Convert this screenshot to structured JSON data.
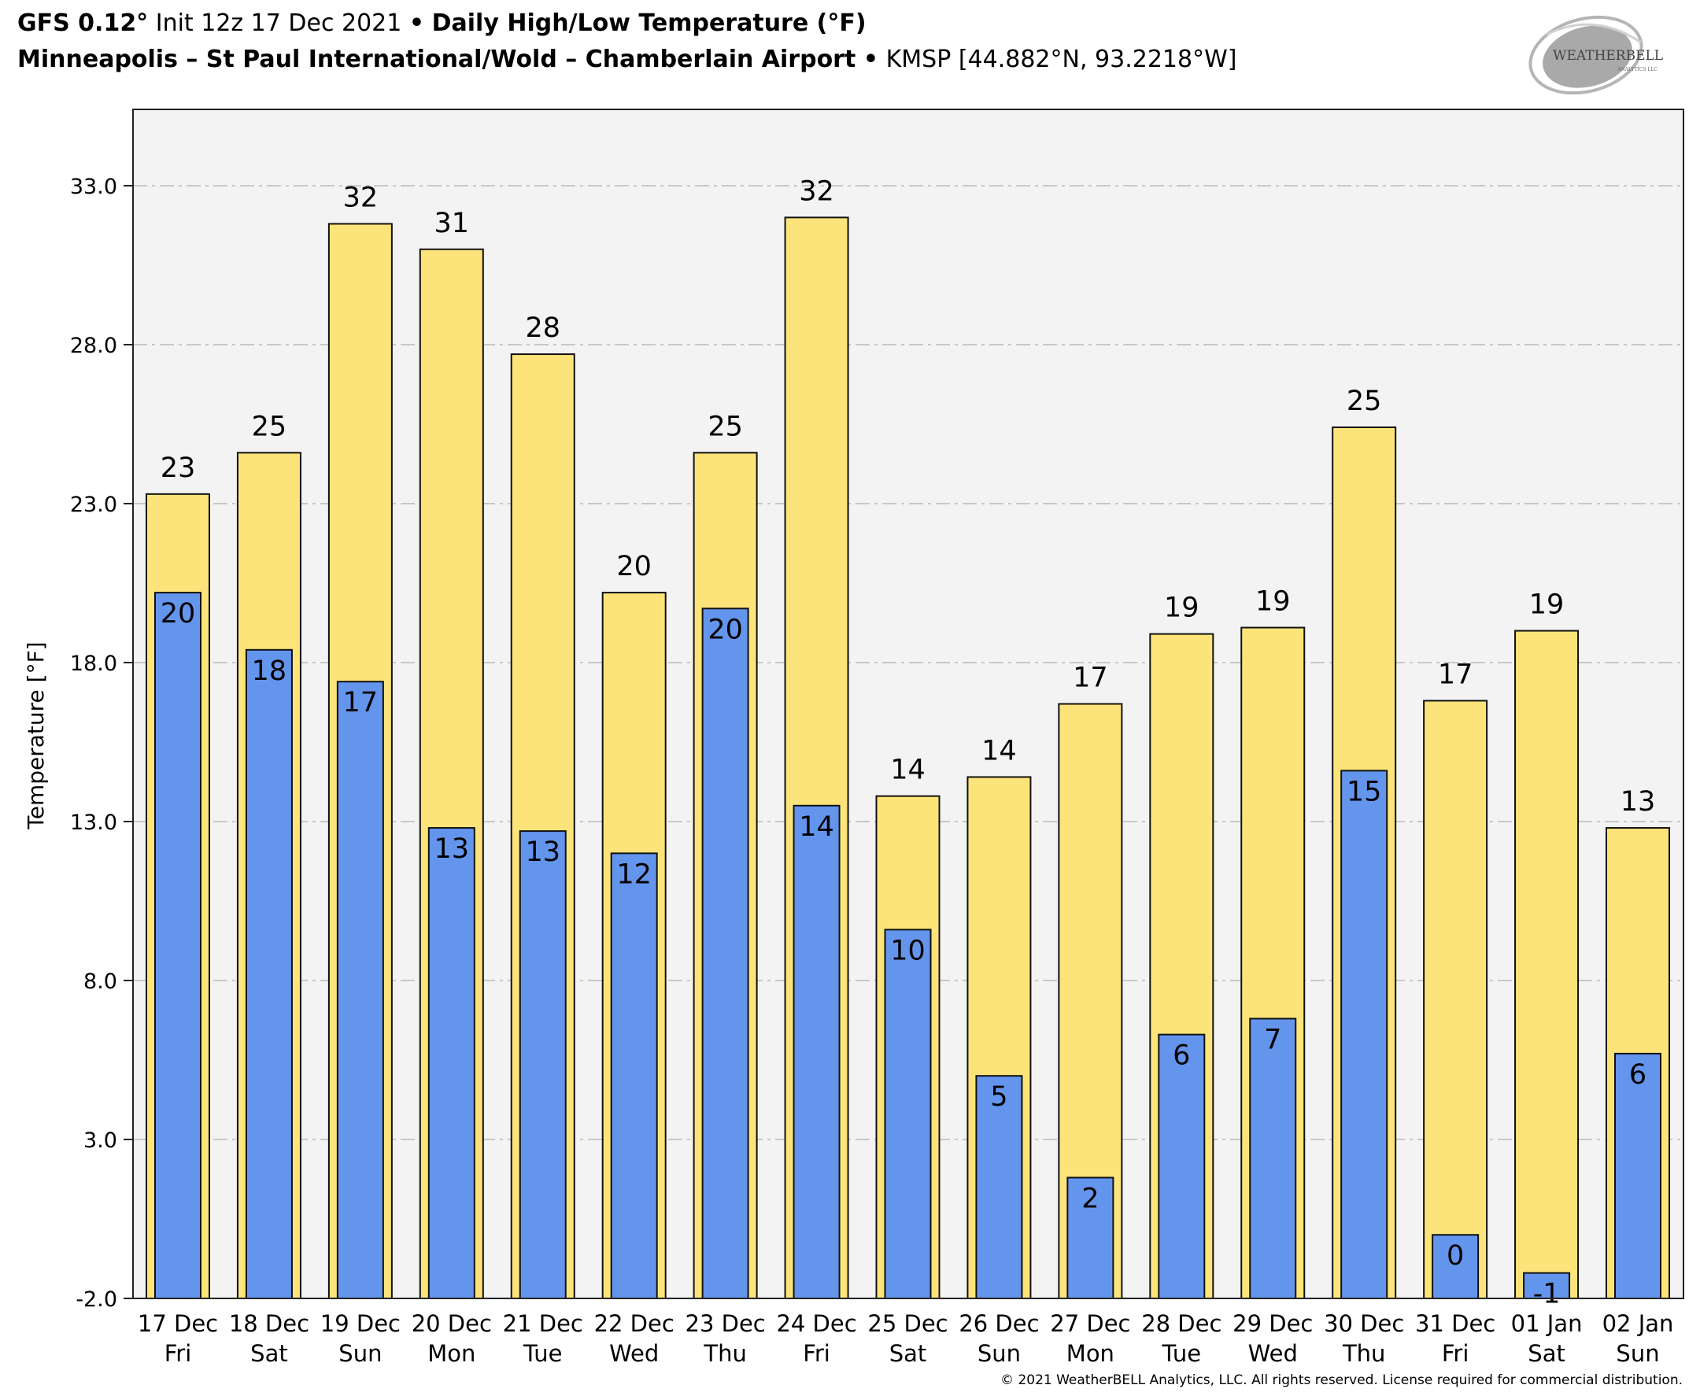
{
  "header": {
    "model": "GFS 0.12°",
    "init": "Init 12z 17 Dec 2021",
    "separator": "•",
    "product": "Daily High/Low Temperature (°F)",
    "station_name": "Minneapolis – St Paul International/Wold – Chamberlain Airport",
    "station_info": "KMSP [44.882°N, 93.2218°W]"
  },
  "logo": {
    "name": "weatherbell-logo",
    "text_main": "WEATHERBELL",
    "text_sub": "ANALYTICS LLC"
  },
  "copyright": "© 2021 WeatherBELL Analytics, LLC. All rights reserved. License required for commercial distribution.",
  "colors": {
    "high_bar": "#fce47a",
    "low_bar": "#6495ed",
    "plot_bg": "#f3f3f3",
    "grid": "#c8c8c8"
  },
  "chart_data": {
    "type": "bar",
    "title": "Daily High/Low Temperature (°F)",
    "xlabel": "",
    "ylabel": "Temperature [°F]",
    "ylim": [
      -2.0,
      35.4
    ],
    "yticks": [
      -2.0,
      3.0,
      8.0,
      13.0,
      18.0,
      23.0,
      28.0,
      33.0
    ],
    "ytick_labels": [
      "-2.0",
      "3.0",
      "8.0",
      "13.0",
      "18.0",
      "23.0",
      "28.0",
      "33.0"
    ],
    "grid": true,
    "legend": "none",
    "categories": [
      {
        "date": "17 Dec",
        "day": "Fri"
      },
      {
        "date": "18 Dec",
        "day": "Sat"
      },
      {
        "date": "19 Dec",
        "day": "Sun"
      },
      {
        "date": "20 Dec",
        "day": "Mon"
      },
      {
        "date": "21 Dec",
        "day": "Tue"
      },
      {
        "date": "22 Dec",
        "day": "Wed"
      },
      {
        "date": "23 Dec",
        "day": "Thu"
      },
      {
        "date": "24 Dec",
        "day": "Fri"
      },
      {
        "date": "25 Dec",
        "day": "Sat"
      },
      {
        "date": "26 Dec",
        "day": "Sun"
      },
      {
        "date": "27 Dec",
        "day": "Mon"
      },
      {
        "date": "28 Dec",
        "day": "Tue"
      },
      {
        "date": "29 Dec",
        "day": "Wed"
      },
      {
        "date": "30 Dec",
        "day": "Thu"
      },
      {
        "date": "31 Dec",
        "day": "Fri"
      },
      {
        "date": "01 Jan",
        "day": "Sat"
      },
      {
        "date": "02 Jan",
        "day": "Sun"
      }
    ],
    "series": [
      {
        "name": "High",
        "values": [
          23.3,
          24.6,
          31.8,
          31.0,
          27.7,
          20.2,
          24.6,
          32.0,
          13.8,
          14.4,
          16.7,
          18.9,
          19.1,
          25.4,
          16.8,
          19.0,
          12.8
        ],
        "labels": [
          "23",
          "25",
          "32",
          "31",
          "28",
          "20",
          "25",
          "32",
          "14",
          "14",
          "17",
          "19",
          "19",
          "25",
          "17",
          "19",
          "13"
        ]
      },
      {
        "name": "Low",
        "values": [
          20.2,
          18.4,
          17.4,
          12.8,
          12.7,
          12.0,
          19.7,
          13.5,
          9.6,
          5.0,
          1.8,
          6.3,
          6.8,
          14.6,
          0.0,
          -1.2,
          5.7
        ],
        "labels": [
          "20",
          "18",
          "17",
          "13",
          "13",
          "12",
          "20",
          "14",
          "10",
          "5",
          "2",
          "6",
          "7",
          "15",
          "0",
          "-1",
          "6"
        ]
      }
    ]
  }
}
